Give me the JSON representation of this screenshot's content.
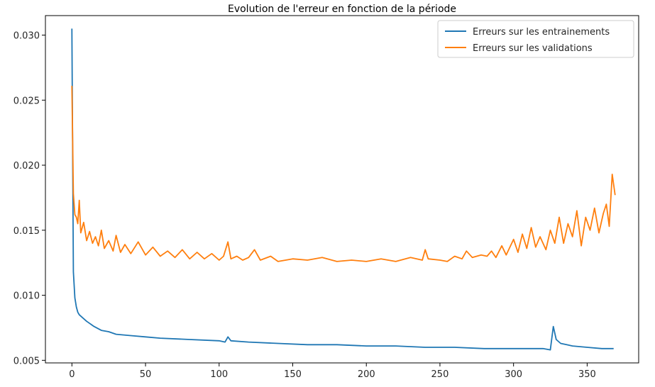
{
  "chart_data": {
    "type": "line",
    "title": "Evolution de l'erreur en fonction de la période",
    "xlabel": "",
    "ylabel": "",
    "xlim": [
      -18,
      385
    ],
    "ylim": [
      0.0048,
      0.0315
    ],
    "xticks": [
      0,
      50,
      100,
      150,
      200,
      250,
      300,
      350
    ],
    "yticks": [
      0.005,
      0.01,
      0.015,
      0.02,
      0.025,
      0.03
    ],
    "ytick_labels": [
      "0.005",
      "0.010",
      "0.015",
      "0.020",
      "0.025",
      "0.030"
    ],
    "grid": false,
    "legend_position": "top-right",
    "series": [
      {
        "name": "Erreurs sur les entrainements",
        "color": "#1f77b4",
        "points": [
          [
            0,
            0.0305
          ],
          [
            1,
            0.0118
          ],
          [
            2,
            0.0098
          ],
          [
            3,
            0.0091
          ],
          [
            4,
            0.0087
          ],
          [
            5,
            0.0085
          ],
          [
            7,
            0.0083
          ],
          [
            10,
            0.008
          ],
          [
            15,
            0.0076
          ],
          [
            20,
            0.0073
          ],
          [
            25,
            0.0072
          ],
          [
            30,
            0.007
          ],
          [
            40,
            0.0069
          ],
          [
            50,
            0.0068
          ],
          [
            60,
            0.0067
          ],
          [
            80,
            0.0066
          ],
          [
            100,
            0.0065
          ],
          [
            104,
            0.0064
          ],
          [
            106,
            0.0068
          ],
          [
            108,
            0.0065
          ],
          [
            120,
            0.0064
          ],
          [
            140,
            0.0063
          ],
          [
            160,
            0.0062
          ],
          [
            180,
            0.0062
          ],
          [
            200,
            0.0061
          ],
          [
            220,
            0.0061
          ],
          [
            240,
            0.006
          ],
          [
            260,
            0.006
          ],
          [
            280,
            0.0059
          ],
          [
            300,
            0.0059
          ],
          [
            320,
            0.0059
          ],
          [
            325,
            0.0058
          ],
          [
            327,
            0.0076
          ],
          [
            329,
            0.0066
          ],
          [
            332,
            0.0063
          ],
          [
            336,
            0.0062
          ],
          [
            340,
            0.0061
          ],
          [
            350,
            0.006
          ],
          [
            360,
            0.0059
          ],
          [
            368,
            0.0059
          ]
        ]
      },
      {
        "name": "Erreurs sur les validations",
        "color": "#ff7f0e",
        "points": [
          [
            0,
            0.0261
          ],
          [
            1,
            0.0178
          ],
          [
            2,
            0.0162
          ],
          [
            3,
            0.016
          ],
          [
            4,
            0.0155
          ],
          [
            5,
            0.0173
          ],
          [
            6,
            0.0148
          ],
          [
            8,
            0.0156
          ],
          [
            10,
            0.0142
          ],
          [
            12,
            0.0149
          ],
          [
            14,
            0.014
          ],
          [
            16,
            0.0145
          ],
          [
            18,
            0.0138
          ],
          [
            20,
            0.015
          ],
          [
            22,
            0.0136
          ],
          [
            25,
            0.0142
          ],
          [
            28,
            0.0134
          ],
          [
            30,
            0.0146
          ],
          [
            33,
            0.0133
          ],
          [
            36,
            0.0139
          ],
          [
            40,
            0.0132
          ],
          [
            45,
            0.0141
          ],
          [
            50,
            0.0131
          ],
          [
            55,
            0.0137
          ],
          [
            60,
            0.013
          ],
          [
            65,
            0.0134
          ],
          [
            70,
            0.0129
          ],
          [
            75,
            0.0135
          ],
          [
            80,
            0.0128
          ],
          [
            85,
            0.0133
          ],
          [
            90,
            0.0128
          ],
          [
            95,
            0.0132
          ],
          [
            100,
            0.0127
          ],
          [
            103,
            0.013
          ],
          [
            106,
            0.0141
          ],
          [
            108,
            0.0128
          ],
          [
            112,
            0.013
          ],
          [
            116,
            0.0127
          ],
          [
            120,
            0.0129
          ],
          [
            124,
            0.0135
          ],
          [
            128,
            0.0127
          ],
          [
            135,
            0.013
          ],
          [
            140,
            0.0126
          ],
          [
            150,
            0.0128
          ],
          [
            160,
            0.0127
          ],
          [
            170,
            0.0129
          ],
          [
            180,
            0.0126
          ],
          [
            190,
            0.0127
          ],
          [
            200,
            0.0126
          ],
          [
            210,
            0.0128
          ],
          [
            220,
            0.0126
          ],
          [
            230,
            0.0129
          ],
          [
            238,
            0.0127
          ],
          [
            240,
            0.0135
          ],
          [
            242,
            0.0128
          ],
          [
            250,
            0.0127
          ],
          [
            255,
            0.0126
          ],
          [
            260,
            0.013
          ],
          [
            265,
            0.0128
          ],
          [
            268,
            0.0134
          ],
          [
            272,
            0.0129
          ],
          [
            278,
            0.0131
          ],
          [
            282,
            0.013
          ],
          [
            285,
            0.0134
          ],
          [
            288,
            0.0129
          ],
          [
            292,
            0.0138
          ],
          [
            295,
            0.0131
          ],
          [
            300,
            0.0143
          ],
          [
            303,
            0.0133
          ],
          [
            306,
            0.0147
          ],
          [
            309,
            0.0136
          ],
          [
            312,
            0.0152
          ],
          [
            315,
            0.0137
          ],
          [
            318,
            0.0145
          ],
          [
            322,
            0.0135
          ],
          [
            325,
            0.015
          ],
          [
            328,
            0.014
          ],
          [
            331,
            0.016
          ],
          [
            334,
            0.014
          ],
          [
            337,
            0.0155
          ],
          [
            340,
            0.0145
          ],
          [
            343,
            0.0165
          ],
          [
            346,
            0.0138
          ],
          [
            349,
            0.016
          ],
          [
            352,
            0.015
          ],
          [
            355,
            0.0167
          ],
          [
            358,
            0.0148
          ],
          [
            361,
            0.0163
          ],
          [
            363,
            0.017
          ],
          [
            365,
            0.0153
          ],
          [
            367,
            0.0193
          ],
          [
            369,
            0.0177
          ]
        ]
      }
    ]
  }
}
